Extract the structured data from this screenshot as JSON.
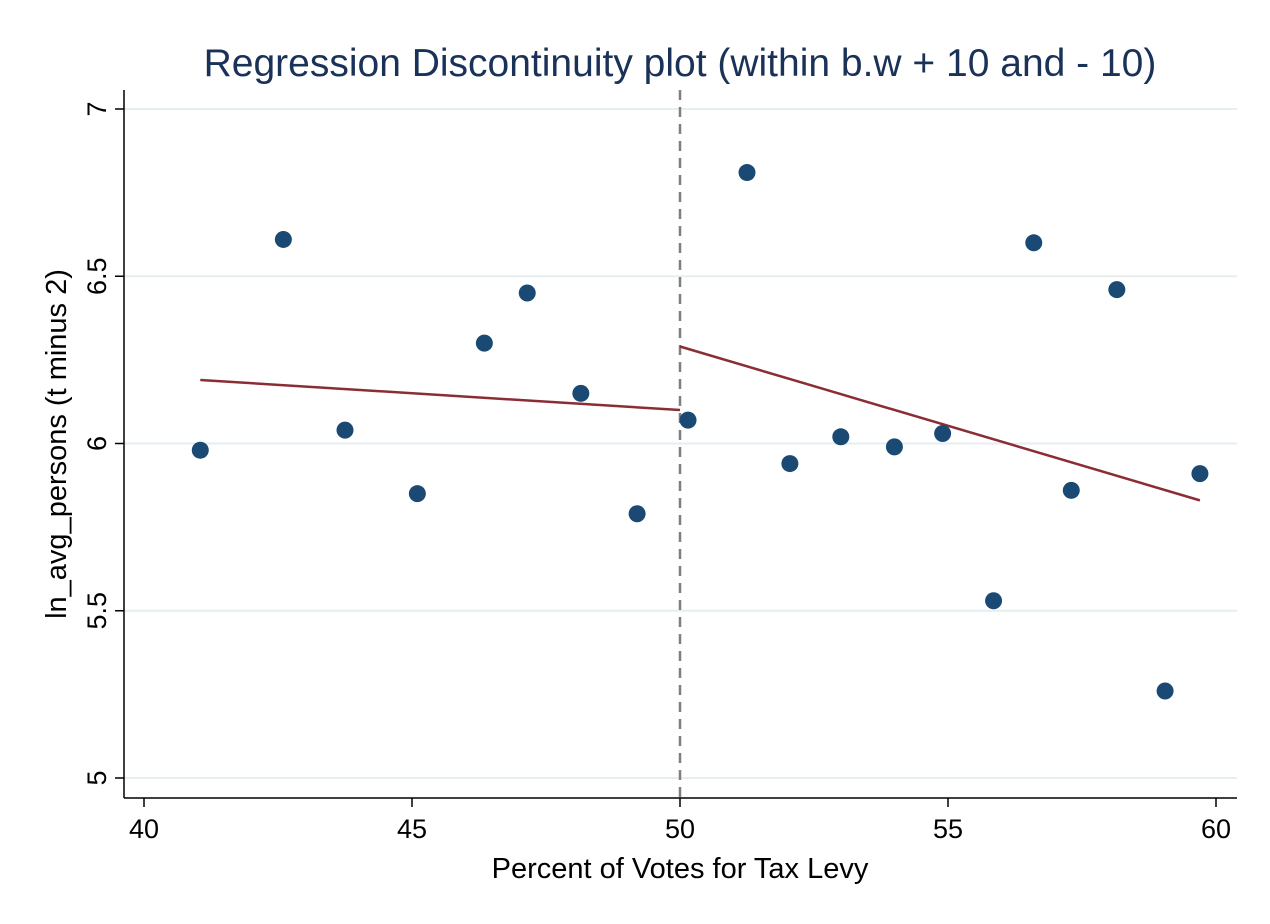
{
  "chart_data": {
    "type": "scatter",
    "title": "Regression Discontinuity plot (within b.w + 10 and - 10)",
    "xlabel": "Percent of Votes for Tax Levy",
    "ylabel": "ln_avg_persons (t minus 2)",
    "xlim": [
      40,
      60
    ],
    "ylim": [
      5,
      7
    ],
    "xticks": [
      40,
      45,
      50,
      55,
      60
    ],
    "yticks": [
      5,
      5.5,
      6,
      6.5,
      7
    ],
    "xtick_labels": [
      "40",
      "45",
      "50",
      "55",
      "60"
    ],
    "ytick_labels": [
      "5",
      "5.5",
      "6",
      "6.5",
      "7"
    ],
    "grid": true,
    "cutoff": 50,
    "points": [
      {
        "x": 41.05,
        "y": 5.98
      },
      {
        "x": 42.6,
        "y": 6.61
      },
      {
        "x": 43.75,
        "y": 6.04
      },
      {
        "x": 45.1,
        "y": 5.85
      },
      {
        "x": 46.35,
        "y": 6.3
      },
      {
        "x": 47.15,
        "y": 6.45
      },
      {
        "x": 48.15,
        "y": 6.15
      },
      {
        "x": 49.2,
        "y": 5.79
      },
      {
        "x": 50.15,
        "y": 6.07
      },
      {
        "x": 51.25,
        "y": 6.81
      },
      {
        "x": 52.05,
        "y": 5.94
      },
      {
        "x": 53.0,
        "y": 6.02
      },
      {
        "x": 54.0,
        "y": 5.99
      },
      {
        "x": 54.9,
        "y": 6.03
      },
      {
        "x": 55.85,
        "y": 5.53
      },
      {
        "x": 56.6,
        "y": 6.6
      },
      {
        "x": 57.3,
        "y": 5.86
      },
      {
        "x": 58.15,
        "y": 6.46
      },
      {
        "x": 59.05,
        "y": 5.26
      },
      {
        "x": 59.7,
        "y": 5.91
      }
    ],
    "fit_lines": [
      {
        "x": [
          41.05,
          50
        ],
        "y": [
          6.19,
          6.1
        ]
      },
      {
        "x": [
          50,
          59.7
        ],
        "y": [
          6.29,
          5.83
        ]
      }
    ],
    "colors": {
      "points": "#1a4a73",
      "fit": "#8b2d35",
      "cutoff": "#7f7f7f",
      "title": "#1a3158"
    }
  }
}
